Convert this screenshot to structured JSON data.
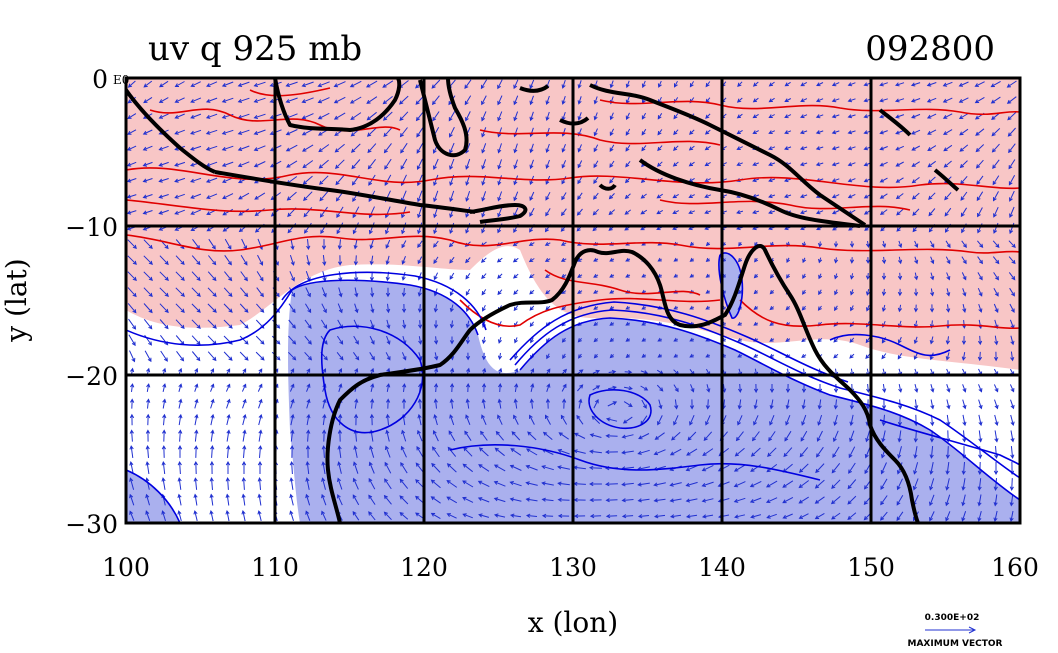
{
  "title_left": "uv  q  925  mb",
  "title_right": "092800",
  "x_axis": {
    "label": "x (lon)",
    "ticks": [
      "100",
      "110",
      "120",
      "130",
      "140",
      "150",
      "160"
    ],
    "range": [
      100,
      160
    ]
  },
  "y_axis": {
    "label": "y (lat)",
    "ticks": [
      "0",
      "−10",
      "−20",
      "−30"
    ],
    "range": [
      -30,
      0
    ]
  },
  "corner_label": "E0",
  "vector_key": {
    "value": "0.300E+02",
    "label": "MAXIMUM VECTOR"
  },
  "colors": {
    "positive_fill": "#f8c6c6",
    "negative_fill": "#aab0ee",
    "positive_contour": "#e00000",
    "negative_contour": "#0000e0",
    "vector": "#2030d0",
    "coast": "#000000"
  }
}
